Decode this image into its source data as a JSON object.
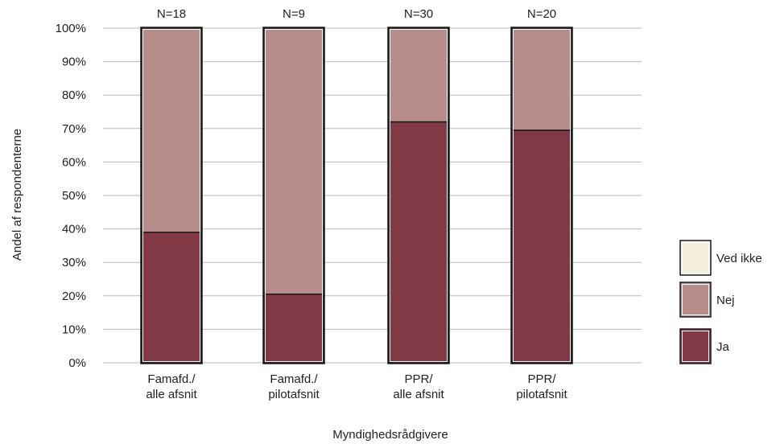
{
  "chart_data": {
    "type": "bar",
    "stacked": true,
    "categories": [
      [
        "Famafd./",
        "alle afsnit"
      ],
      [
        "Famafd./",
        "pilotafsnit"
      ],
      [
        "PPR/",
        "alle afsnit"
      ],
      [
        "PPR/",
        "pilotafsnit"
      ]
    ],
    "n_labels": [
      "N=18",
      "N=9",
      "N=30",
      "N=20"
    ],
    "series": [
      {
        "name": "Ja",
        "color": "#813a45",
        "values": [
          39,
          20.5,
          72,
          69.5
        ]
      },
      {
        "name": "Nej",
        "color": "#b68d8b",
        "values": [
          61,
          79.5,
          28,
          30.5
        ]
      },
      {
        "name": "Ved ikke",
        "color": "#f4efdd",
        "values": [
          0,
          0,
          0,
          0
        ]
      }
    ],
    "legend_order": [
      "Ved ikke",
      "Nej",
      "Ja"
    ],
    "xlabel": "Myndighedsrådgivere",
    "ylabel": "Andel af respondenterne",
    "y_ticks": [
      "0%",
      "10%",
      "20%",
      "30%",
      "40%",
      "50%",
      "60%",
      "70%",
      "80%",
      "90%",
      "100%"
    ],
    "ylim": [
      0,
      100
    ],
    "grid": true,
    "legend_position": "right"
  }
}
